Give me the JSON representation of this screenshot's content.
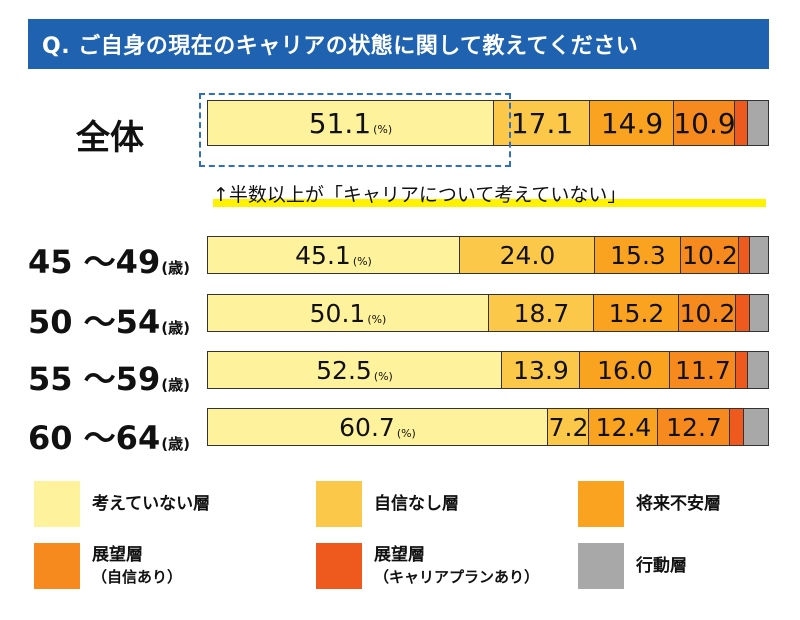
{
  "title": "Q. ご自身の現在のキャリアの状態に関して教えてください",
  "annotation": "↑半数以上が「キャリアについて考えていない」",
  "colors": {
    "not_thinking": "#fff29c",
    "no_confidence": "#fbc84a",
    "anxious": "#faa321",
    "outlook_confident": "#f78a1e",
    "outlook_plan": "#ee5a1e",
    "action": "#a8a8a8"
  },
  "chart_data": {
    "type": "bar",
    "orientation": "horizontal",
    "stacked": true,
    "normalized": true,
    "categories": [
      "全体",
      "45 〜49",
      "50 〜54",
      "55 〜59",
      "60 〜64"
    ],
    "category_unit": "(歳)",
    "value_unit": "(%)",
    "series": [
      {
        "name": "考えていない層",
        "values": [
          51.1,
          45.1,
          50.1,
          52.5,
          60.7
        ]
      },
      {
        "name": "自信なし層",
        "values": [
          17.1,
          24.0,
          18.7,
          13.9,
          7.2
        ]
      },
      {
        "name": "将来不安層",
        "values": [
          14.9,
          15.3,
          15.2,
          16.0,
          12.4
        ]
      },
      {
        "name": "展望層（自信あり）",
        "values": [
          10.9,
          10.2,
          10.2,
          11.7,
          12.7
        ]
      },
      {
        "name": "展望層（キャリアプランあり）",
        "values": [
          2.3,
          2.1,
          2.5,
          2.1,
          2.5
        ]
      },
      {
        "name": "行動層",
        "values": [
          3.7,
          3.3,
          3.3,
          3.8,
          4.5
        ]
      }
    ],
    "labeled_series_count": 4
  },
  "legend": [
    {
      "label": "考えていない層",
      "sub": ""
    },
    {
      "label": "自信なし層",
      "sub": ""
    },
    {
      "label": "将来不安層",
      "sub": ""
    },
    {
      "label": "展望層",
      "sub": "（自信あり）"
    },
    {
      "label": "展望層",
      "sub": "（キャリアプランあり）"
    },
    {
      "label": "行動層",
      "sub": ""
    }
  ]
}
